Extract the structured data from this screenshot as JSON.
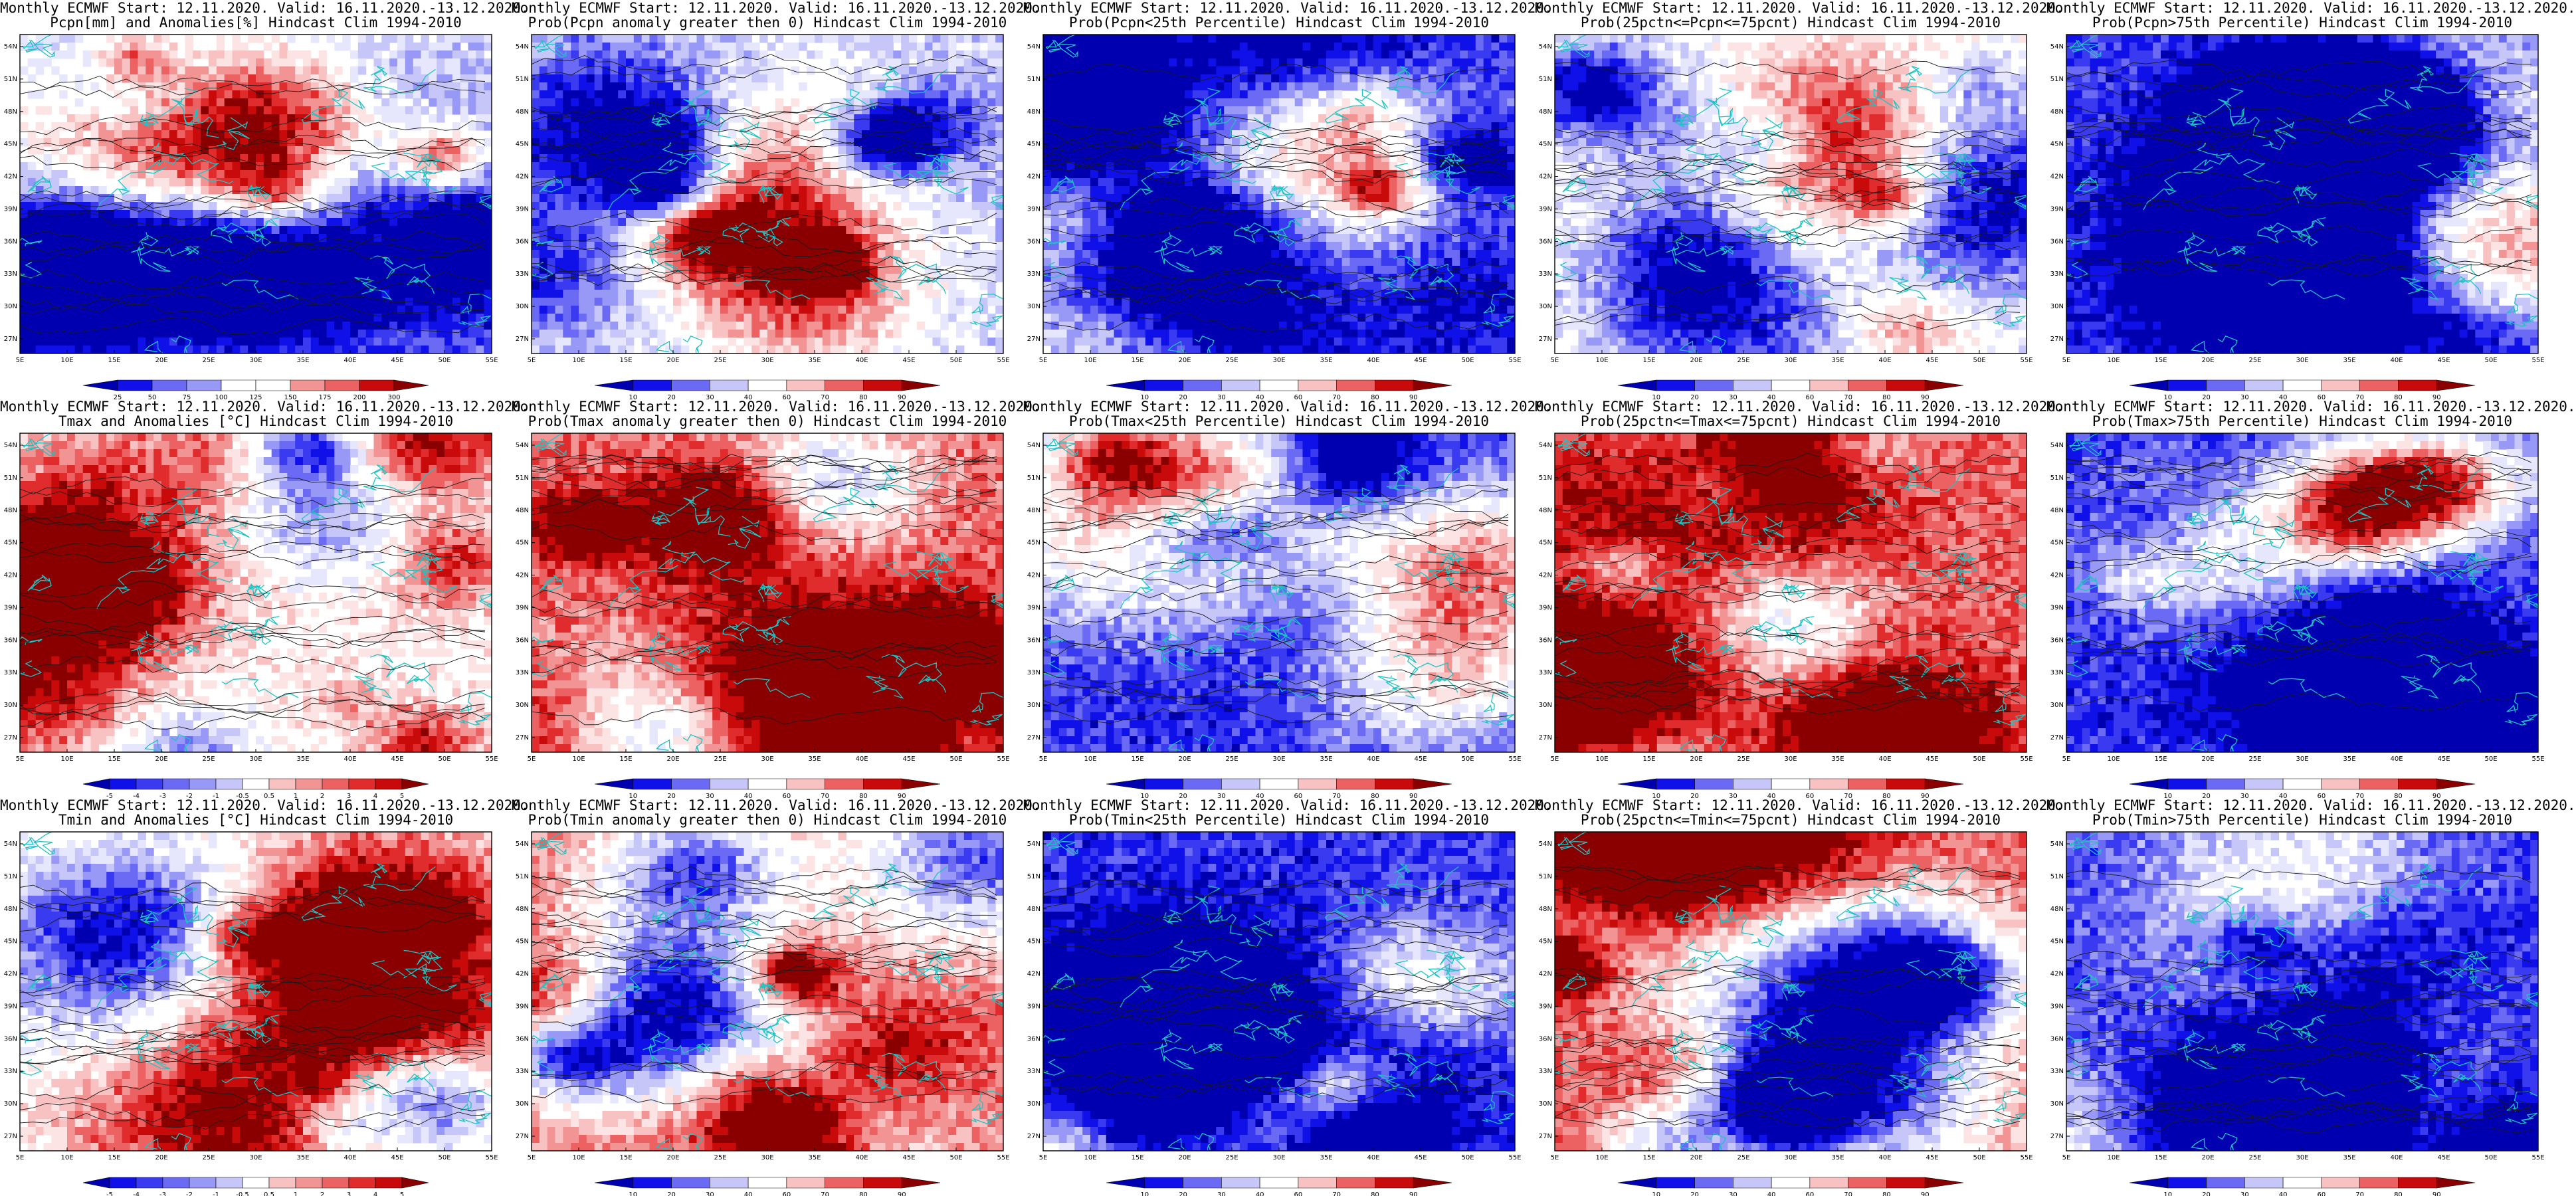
{
  "lat_ticks": [
    "27N",
    "30N",
    "33N",
    "36N",
    "39N",
    "42N",
    "45N",
    "48N",
    "51N",
    "54N"
  ],
  "lon_ticks": [
    "5E",
    "10E",
    "15E",
    "20E",
    "25E",
    "30E",
    "35E",
    "40E",
    "45E",
    "50E",
    "55E"
  ],
  "colors": {
    "coast": "#1fc3c3",
    "contour": "#1a1a1a",
    "blue_scale": [
      "#0000b0",
      "#1010e8",
      "#3a3af0",
      "#6a6af4",
      "#9898f6",
      "#c6c6f9",
      "#e6e6fc"
    ],
    "red_scale": [
      "#fce4e4",
      "#f8c2c2",
      "#f29494",
      "#ec6262",
      "#e02c2c",
      "#c80a0a",
      "#8a0000"
    ]
  },
  "panels": [
    {
      "kind": "pcpn_anom",
      "title1": "Monthly ECMWF Start: 12.11.2020. Valid: 16.11.2020.-13.12.2020.",
      "title2": "Pcpn[mm] and Anomalies[%] Hindcast Clim 1994-2010",
      "colorbar": [
        "25",
        "50",
        "75",
        "100",
        "125",
        "150",
        "175",
        "200",
        "300"
      ]
    },
    {
      "kind": "prob_above",
      "title1": "Monthly ECMWF Start: 12.11.2020. Valid: 16.11.2020.-13.12.2020.",
      "title2": "Prob(Pcpn anomaly greater then 0) Hindcast Clim 1994-2010",
      "colorbar": [
        "10",
        "20",
        "30",
        "40",
        "60",
        "70",
        "80",
        "90"
      ]
    },
    {
      "kind": "prob_low",
      "title1": "Monthly ECMWF Start: 12.11.2020. Valid: 16.11.2020.-13.12.2020.",
      "title2": "Prob(Pcpn<25th Percentile) Hindcast Clim 1994-2010",
      "colorbar": [
        "10",
        "20",
        "30",
        "40",
        "60",
        "70",
        "80",
        "90"
      ]
    },
    {
      "kind": "prob_mid",
      "title1": "Monthly ECMWF Start: 12.11.2020. Valid: 16.11.2020.-13.12.2020.",
      "title2": "Prob(25pctn<=Pcpn<=75pcnt) Hindcast Clim 1994-2010",
      "colorbar": [
        "10",
        "20",
        "30",
        "40",
        "60",
        "70",
        "80",
        "90"
      ]
    },
    {
      "kind": "prob_high_blue",
      "title1": "Monthly ECMWF Start: 12.11.2020. Valid: 16.11.2020.-13.12.2020.",
      "title2": "Prob(Pcpn>75th Percentile) Hindcast Clim 1994-2010",
      "colorbar": [
        "10",
        "20",
        "30",
        "40",
        "60",
        "70",
        "80",
        "90"
      ]
    },
    {
      "kind": "temp_anom",
      "title1": "Monthly ECMWF Start: 12.11.2020. Valid: 16.11.2020.-13.12.2020.",
      "title2": "Tmax and Anomalies [°C] Hindcast Clim 1994-2010",
      "colorbar": [
        "-5",
        "-4",
        "-3",
        "-2",
        "-1",
        "-0.5",
        "0.5",
        "1",
        "2",
        "3",
        "4",
        "5"
      ]
    },
    {
      "kind": "prob_above_red",
      "title1": "Monthly ECMWF Start: 12.11.2020. Valid: 16.11.2020.-13.12.2020.",
      "title2": "Prob(Tmax anomaly greater then 0) Hindcast Clim 1994-2010",
      "colorbar": [
        "10",
        "20",
        "30",
        "40",
        "60",
        "70",
        "80",
        "90"
      ]
    },
    {
      "kind": "prob_low_blue",
      "title1": "Monthly ECMWF Start: 12.11.2020. Valid: 16.11.2020.-13.12.2020.",
      "title2": "Prob(Tmax<25th Percentile) Hindcast Clim 1994-2010",
      "colorbar": [
        "10",
        "20",
        "30",
        "40",
        "60",
        "70",
        "80",
        "90"
      ]
    },
    {
      "kind": "prob_mid_red",
      "title1": "Monthly ECMWF Start: 12.11.2020. Valid: 16.11.2020.-13.12.2020.",
      "title2": "Prob(25pctn<=Tmax<=75pcnt) Hindcast Clim 1994-2010",
      "colorbar": [
        "10",
        "20",
        "30",
        "40",
        "60",
        "70",
        "80",
        "90"
      ]
    },
    {
      "kind": "prob_high_blue2",
      "title1": "Monthly ECMWF Start: 12.11.2020. Valid: 16.11.2020.-13.12.2020.",
      "title2": "Prob(Tmax>75th Percentile) Hindcast Clim 1994-2010",
      "colorbar": [
        "10",
        "20",
        "30",
        "40",
        "60",
        "70",
        "80",
        "90"
      ]
    },
    {
      "kind": "temp_anom2",
      "title1": "Monthly ECMWF Start: 12.11.2020. Valid: 16.11.2020.-13.12.2020.",
      "title2": "Tmin and Anomalies [°C] Hindcast Clim 1994-2010",
      "colorbar": [
        "-5",
        "-4",
        "-3",
        "-2",
        "-1",
        "-0.5",
        "0.5",
        "1",
        "2",
        "3",
        "4",
        "5"
      ]
    },
    {
      "kind": "prob_above_red2",
      "title1": "Monthly ECMWF Start: 12.11.2020. Valid: 16.11.2020.-13.12.2020.",
      "title2": "Prob(Tmin anomaly greater then 0) Hindcast Clim 1994-2010",
      "colorbar": [
        "10",
        "20",
        "30",
        "40",
        "60",
        "70",
        "80",
        "90"
      ]
    },
    {
      "kind": "prob_low_blue2",
      "title1": "Monthly ECMWF Start: 12.11.2020. Valid: 16.11.2020.-13.12.2020.",
      "title2": "Prob(Tmin<25th Percentile) Hindcast Clim 1994-2010",
      "colorbar": [
        "10",
        "20",
        "30",
        "40",
        "60",
        "70",
        "80",
        "90"
      ]
    },
    {
      "kind": "prob_mid_red2",
      "title1": "Monthly ECMWF Start: 12.11.2020. Valid: 16.11.2020.-13.12.2020.",
      "title2": "Prob(25pctn<=Tmin<=75pcnt) Hindcast Clim 1994-2010",
      "colorbar": [
        "10",
        "20",
        "30",
        "40",
        "60",
        "70",
        "80",
        "90"
      ]
    },
    {
      "kind": "prob_high_blue3",
      "title1": "Monthly ECMWF Start: 12.11.2020. Valid: 16.11.2020.-13.12.2020.",
      "title2": "Prob(Tmin>75th Percentile) Hindcast Clim 1994-2010",
      "colorbar": [
        "10",
        "20",
        "30",
        "40",
        "60",
        "70",
        "80",
        "90"
      ]
    }
  ]
}
